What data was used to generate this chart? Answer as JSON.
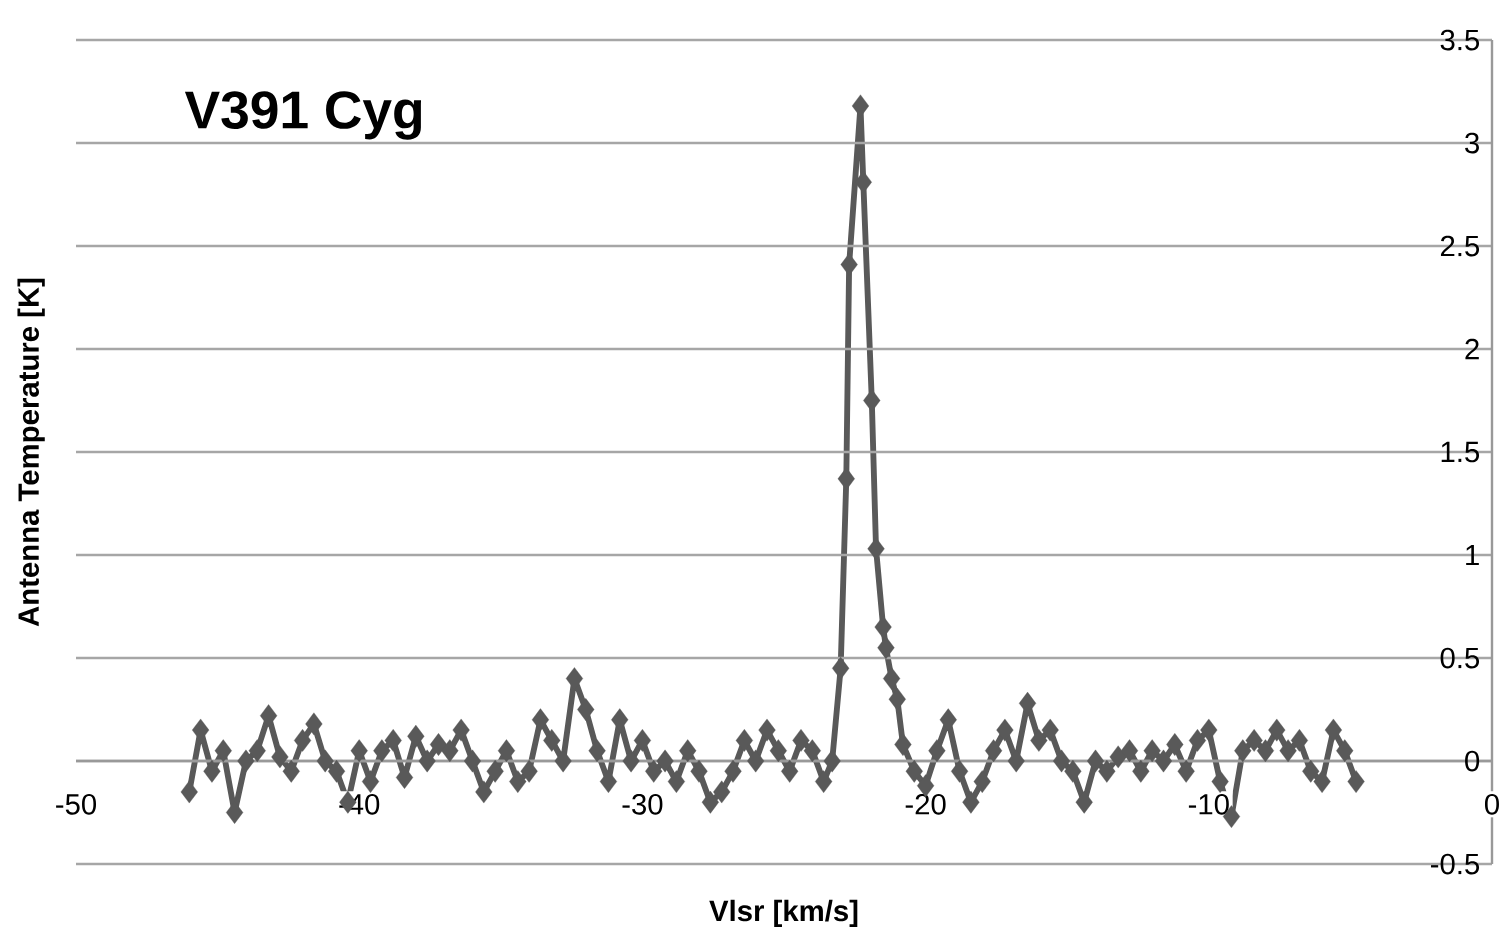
{
  "chart_data": {
    "type": "line",
    "title": "V391 Cyg",
    "xlabel": "Vlsr [km/s]",
    "ylabel": "Antenna Temperature [K]",
    "xlim": [
      -50,
      0
    ],
    "xticks": [
      -50,
      -40,
      -30,
      -20,
      -10,
      0
    ],
    "ylim": [
      -0.5,
      3.5
    ],
    "yticks": [
      -0.5,
      0,
      0.5,
      1,
      1.5,
      2,
      2.5,
      3,
      3.5
    ],
    "grid": "y",
    "marker": "diamond",
    "line_style": "solid",
    "series": [
      {
        "color": "#595959",
        "x": [
          -46.0,
          -45.6,
          -45.2,
          -44.8,
          -44.4,
          -44.0,
          -43.6,
          -43.2,
          -42.8,
          -42.4,
          -42.0,
          -41.6,
          -41.2,
          -40.8,
          -40.4,
          -40.0,
          -39.6,
          -39.2,
          -38.8,
          -38.4,
          -38.0,
          -37.6,
          -37.2,
          -36.8,
          -36.4,
          -36.0,
          -35.6,
          -35.2,
          -34.8,
          -34.4,
          -34.0,
          -33.6,
          -33.2,
          -32.8,
          -32.4,
          -32.0,
          -31.6,
          -31.2,
          -30.8,
          -30.4,
          -30.0,
          -29.6,
          -29.2,
          -28.8,
          -28.4,
          -28.0,
          -27.6,
          -27.2,
          -26.8,
          -26.4,
          -26.0,
          -25.6,
          -25.2,
          -24.8,
          -24.4,
          -24.0,
          -23.6,
          -23.3,
          -23.0,
          -22.8,
          -22.7,
          -22.3,
          -22.2,
          -21.9,
          -21.75,
          -21.5,
          -21.4,
          -21.2,
          -21.0,
          -20.8,
          -20.4,
          -20.0,
          -19.6,
          -19.2,
          -18.8,
          -18.4,
          -18.0,
          -17.6,
          -17.2,
          -16.8,
          -16.4,
          -16.0,
          -15.6,
          -15.2,
          -14.8,
          -14.4,
          -14.0,
          -13.6,
          -13.2,
          -12.8,
          -12.4,
          -12.0,
          -11.6,
          -11.2,
          -10.8,
          -10.4,
          -10.0,
          -9.6,
          -9.2,
          -8.8,
          -8.4,
          -8.0,
          -7.6,
          -7.2,
          -6.8,
          -6.4,
          -6.0,
          -5.6,
          -5.2,
          -4.8
        ],
        "values": [
          -0.15,
          0.15,
          -0.05,
          0.05,
          -0.25,
          0.0,
          0.05,
          0.22,
          0.02,
          -0.05,
          0.1,
          0.18,
          0.0,
          -0.05,
          -0.2,
          0.05,
          -0.1,
          0.05,
          0.1,
          -0.08,
          0.12,
          0.0,
          0.08,
          0.05,
          0.15,
          0.0,
          -0.15,
          -0.05,
          0.05,
          -0.1,
          -0.05,
          0.2,
          0.1,
          0.0,
          0.4,
          0.25,
          0.05,
          -0.1,
          0.2,
          0.0,
          0.1,
          -0.05,
          0.0,
          -0.1,
          0.05,
          -0.05,
          -0.2,
          -0.15,
          -0.05,
          0.1,
          0.0,
          0.15,
          0.05,
          -0.05,
          0.1,
          0.05,
          -0.1,
          0.0,
          0.45,
          1.37,
          2.41,
          3.18,
          2.81,
          1.75,
          1.03,
          0.65,
          0.55,
          0.4,
          0.3,
          0.08,
          -0.05,
          -0.12,
          0.05,
          0.2,
          -0.05,
          -0.2,
          -0.1,
          0.05,
          0.15,
          0.0,
          0.28,
          0.1,
          0.15,
          0.0,
          -0.05,
          -0.2,
          0.0,
          -0.05,
          0.02,
          0.05,
          -0.05,
          0.05,
          0.0,
          0.08,
          -0.05,
          0.1,
          0.15,
          -0.1,
          -0.27,
          0.05,
          0.1,
          0.05,
          0.15,
          0.05,
          0.1,
          -0.05,
          -0.1,
          0.15,
          0.05,
          -0.1
        ]
      }
    ]
  }
}
